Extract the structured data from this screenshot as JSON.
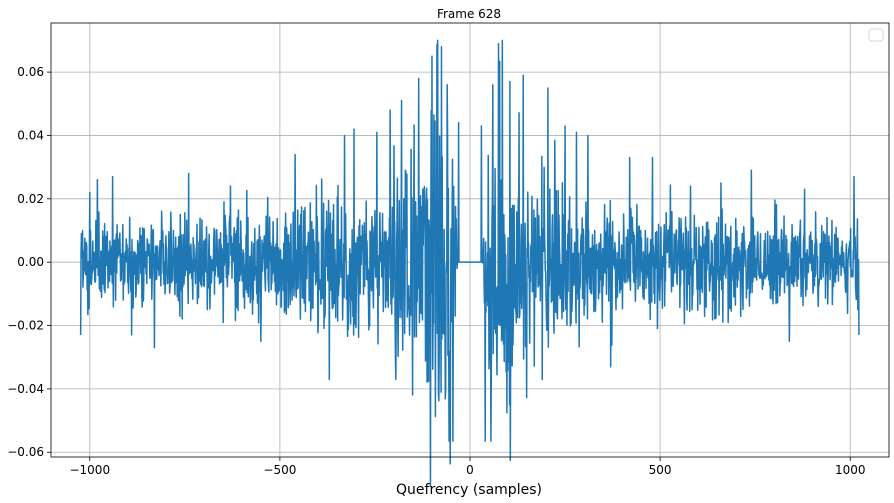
{
  "chart_data": {
    "type": "line",
    "title": "Frame 628",
    "xlabel": "Quefrency (samples)",
    "ylabel": "",
    "xlim": [
      -1102,
      1102
    ],
    "ylim": [
      -0.0615,
      0.0755
    ],
    "xticks": [
      -1000,
      -500,
      0,
      500,
      1000
    ],
    "xtick_labels": [
      "−1000",
      "−500",
      "0",
      "500",
      "1000"
    ],
    "yticks": [
      -0.06,
      -0.04,
      -0.02,
      0.0,
      0.02,
      0.04,
      0.06
    ],
    "ytick_labels": [
      "−0.06",
      "−0.04",
      "−0.02",
      "0.00",
      "0.02",
      "0.04",
      "0.06"
    ],
    "grid": true,
    "legend": {
      "placement": "top-right",
      "entries": []
    },
    "series": [
      {
        "color": "#1f77b4",
        "x_range": [
          -1024,
          1023
        ],
        "zero_band": [
          -33,
          33
        ],
        "envelope_x": [
          -1024,
          -900,
          -800,
          -700,
          -600,
          -500,
          -400,
          -300,
          -250,
          -200,
          -150,
          -120,
          -90,
          -70,
          -50,
          -40,
          -33,
          33,
          40,
          50,
          70,
          90,
          120,
          150,
          200,
          250,
          300,
          400,
          500,
          600,
          700,
          800,
          900,
          1023
        ],
        "envelope_y": [
          0.014,
          0.015,
          0.016,
          0.017,
          0.018,
          0.02,
          0.022,
          0.026,
          0.028,
          0.034,
          0.038,
          0.046,
          0.06,
          0.065,
          0.05,
          0.04,
          0.0,
          0.0,
          0.04,
          0.05,
          0.065,
          0.06,
          0.046,
          0.038,
          0.034,
          0.028,
          0.026,
          0.022,
          0.02,
          0.018,
          0.017,
          0.016,
          0.015,
          0.014
        ],
        "peaks": [
          {
            "x": -1024,
            "y": -0.023
          },
          {
            "x": -1022,
            "y": 0.009
          },
          {
            "x": -1000,
            "y": 0.022
          },
          {
            "x": -980,
            "y": 0.026
          },
          {
            "x": -940,
            "y": 0.027
          },
          {
            "x": -890,
            "y": -0.023
          },
          {
            "x": -830,
            "y": 0.025
          },
          {
            "x": -830,
            "y": -0.027
          },
          {
            "x": -740,
            "y": 0.028
          },
          {
            "x": -630,
            "y": 0.024
          },
          {
            "x": -550,
            "y": -0.025
          },
          {
            "x": -460,
            "y": 0.034
          },
          {
            "x": -370,
            "y": -0.037
          },
          {
            "x": -330,
            "y": 0.04
          },
          {
            "x": -305,
            "y": 0.042
          },
          {
            "x": -245,
            "y": 0.041
          },
          {
            "x": -210,
            "y": 0.048
          },
          {
            "x": -195,
            "y": -0.037
          },
          {
            "x": -180,
            "y": 0.051
          },
          {
            "x": -135,
            "y": 0.058
          },
          {
            "x": -100,
            "y": 0.065
          },
          {
            "x": -85,
            "y": 0.07
          },
          {
            "x": -75,
            "y": 0.068
          },
          {
            "x": -60,
            "y": 0.056
          },
          {
            "x": -55,
            "y": -0.0565
          },
          {
            "x": -45,
            "y": -0.0565
          },
          {
            "x": -30,
            "y": 0.044
          },
          {
            "x": 30,
            "y": 0.043
          },
          {
            "x": 40,
            "y": -0.0565
          },
          {
            "x": 55,
            "y": -0.0565
          },
          {
            "x": 60,
            "y": 0.056
          },
          {
            "x": 75,
            "y": 0.069
          },
          {
            "x": 85,
            "y": 0.07
          },
          {
            "x": 105,
            "y": 0.057
          },
          {
            "x": 140,
            "y": 0.059
          },
          {
            "x": 190,
            "y": -0.037
          },
          {
            "x": 205,
            "y": 0.055
          },
          {
            "x": 250,
            "y": 0.043
          },
          {
            "x": 280,
            "y": 0.041
          },
          {
            "x": 310,
            "y": 0.04
          },
          {
            "x": 370,
            "y": -0.033
          },
          {
            "x": 420,
            "y": 0.033
          },
          {
            "x": 480,
            "y": 0.033
          },
          {
            "x": 580,
            "y": 0.024
          },
          {
            "x": 660,
            "y": 0.025
          },
          {
            "x": 740,
            "y": 0.029
          },
          {
            "x": 840,
            "y": 0.027
          },
          {
            "x": 840,
            "y": -0.025
          },
          {
            "x": 880,
            "y": 0.023
          },
          {
            "x": 1010,
            "y": 0.027
          },
          {
            "x": 1023,
            "y": -0.023
          }
        ]
      }
    ]
  }
}
